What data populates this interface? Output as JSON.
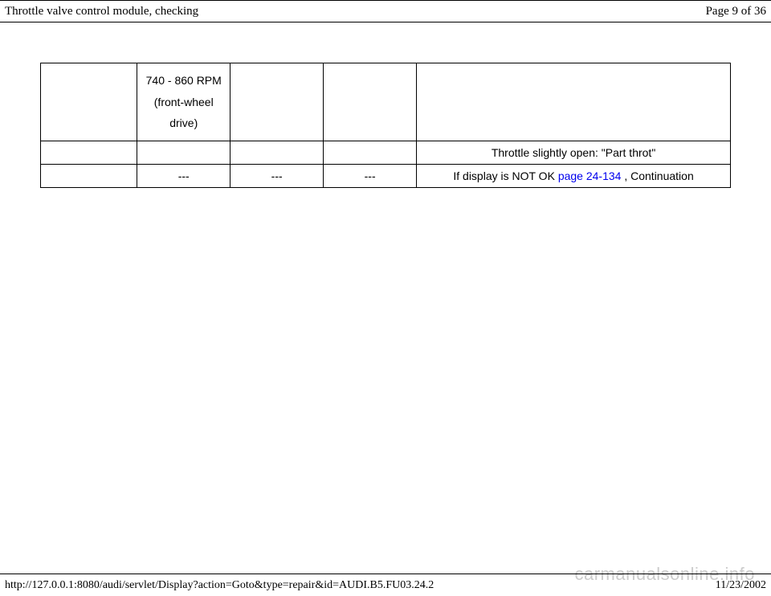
{
  "header": {
    "title": "Throttle valve control module, checking",
    "page_label": "Page 9 of 36"
  },
  "table": {
    "row1": {
      "c1": "",
      "c2_line1": "740 - 860 RPM",
      "c2_line2": "(front-wheel drive)",
      "c3": "",
      "c4": "",
      "c5": ""
    },
    "row2": {
      "c1": "",
      "c2": "",
      "c3": "",
      "c4": "",
      "c5": "Throttle slightly open: \"Part throt\""
    },
    "row3": {
      "c1": "",
      "c2": "---",
      "c3": "---",
      "c4": "---",
      "c5_prefix": "If display is NOT OK  ",
      "c5_link": "page 24-134",
      "c5_suffix": " , Continuation"
    }
  },
  "footer": {
    "url": "http://127.0.0.1:8080/audi/servlet/Display?action=Goto&type=repair&id=AUDI.B5.FU03.24.2",
    "date": "11/23/2002"
  },
  "watermark": "carmanualsonline.info",
  "styles": {
    "link_color": "#0000ee",
    "border_color": "#000000",
    "watermark_color": "#cccccc"
  }
}
